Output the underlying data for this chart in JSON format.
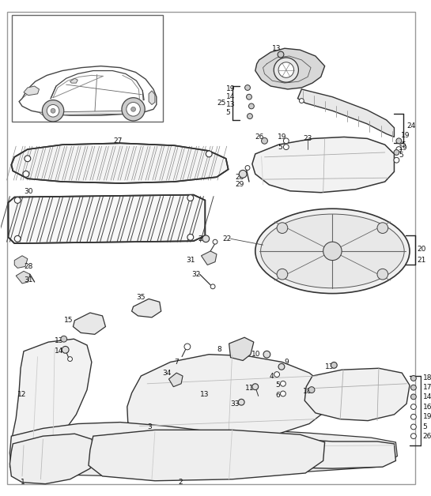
{
  "bg_color": "#ffffff",
  "fig_width": 5.45,
  "fig_height": 6.28,
  "dpi": 100,
  "lc": "#222222",
  "fc_light": "#f0f0f0",
  "fc_mid": "#e0e0e0",
  "fc_dark": "#cccccc"
}
